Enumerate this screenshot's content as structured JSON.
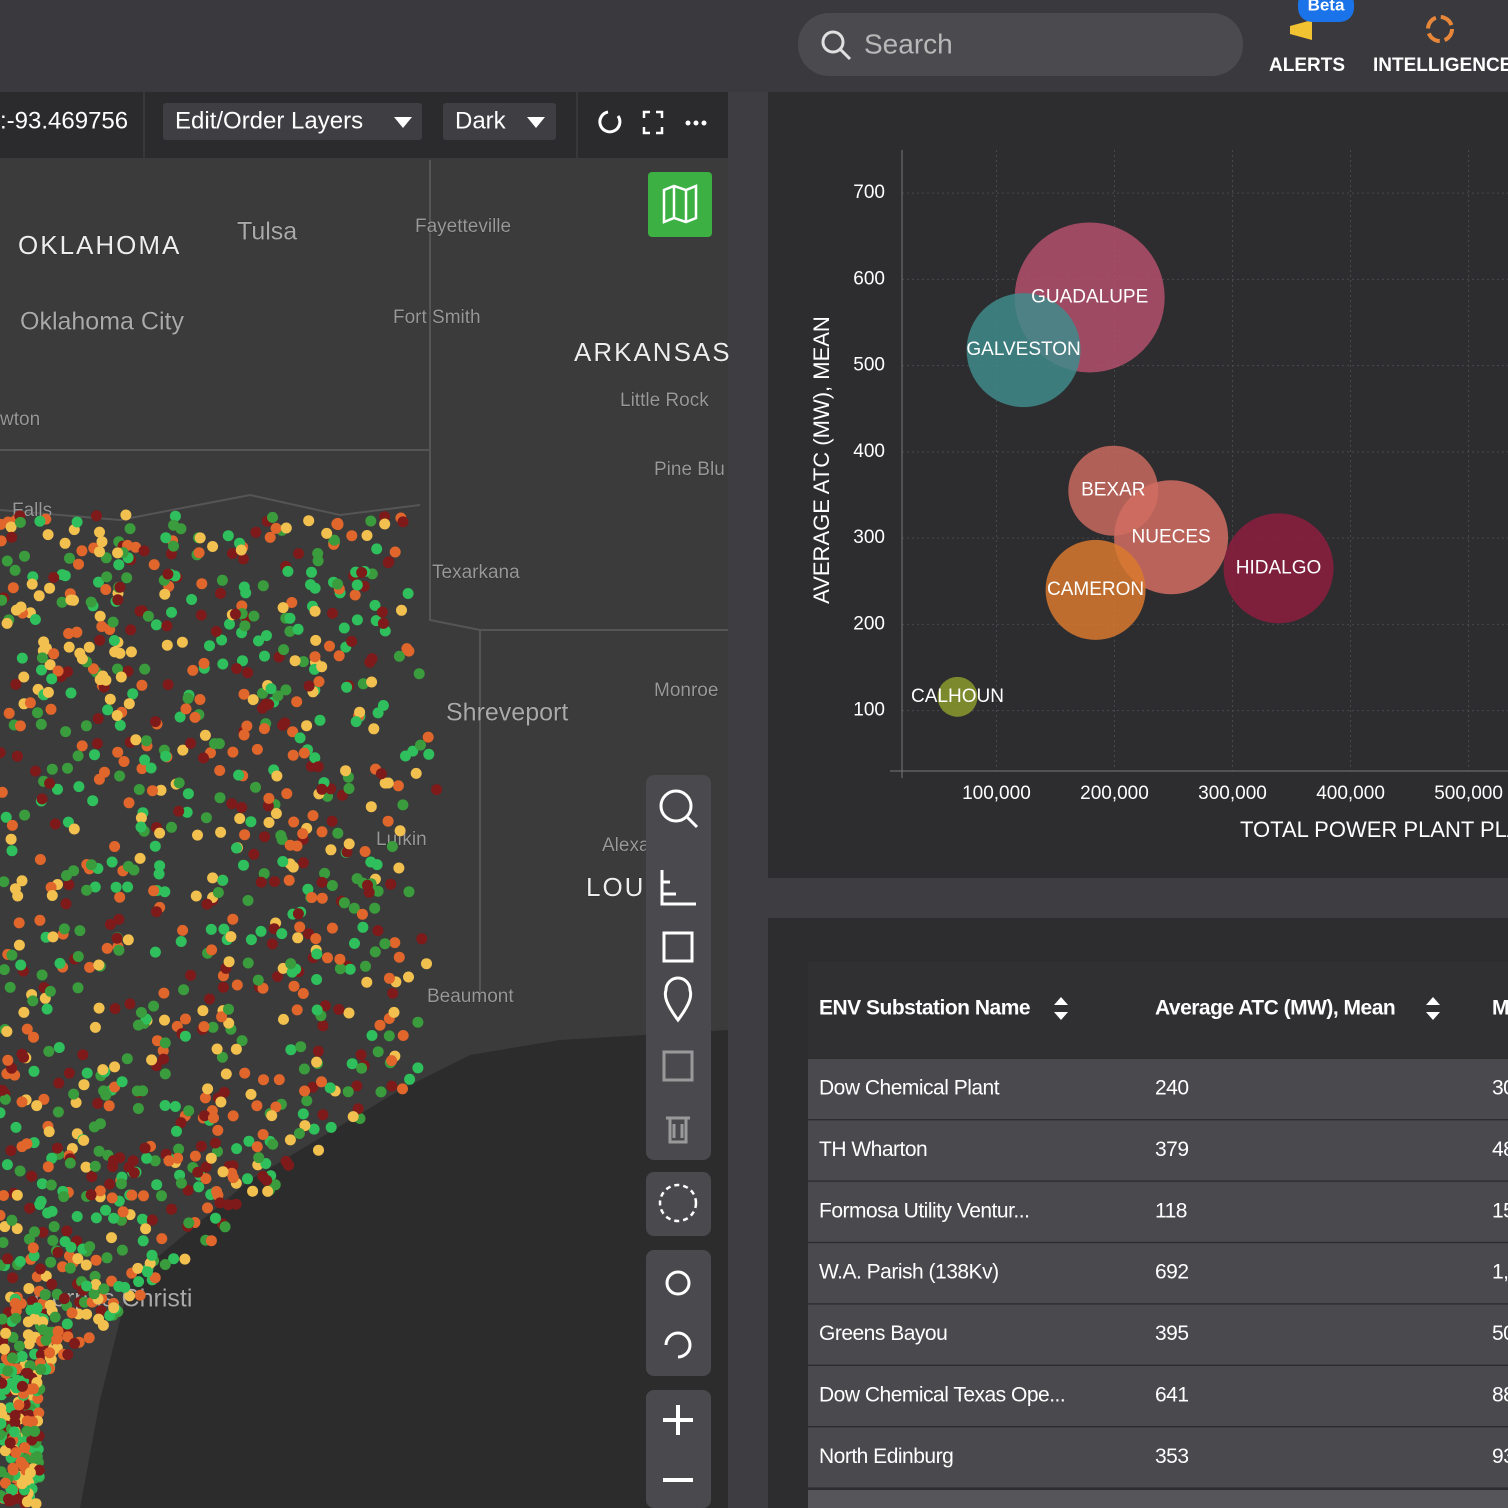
{
  "header": {
    "search_placeholder": "Search",
    "alerts": "ALERTS",
    "beta": "Beta",
    "intelligence": "INTELLIGENCE"
  },
  "map": {
    "coordinate": ":-93.469756",
    "layers_button": "Edit/Order Layers",
    "style_button": "Dark",
    "labels": [
      {
        "text": "OKLAHOMA",
        "kind": "state"
      },
      {
        "text": "Tulsa",
        "kind": "city"
      },
      {
        "text": "Fayetteville",
        "kind": "town"
      },
      {
        "text": "Oklahoma City",
        "kind": "city"
      },
      {
        "text": "Fort Smith",
        "kind": "town"
      },
      {
        "text": "ARKANSAS",
        "kind": "state"
      },
      {
        "text": "Little Rock",
        "kind": "town"
      },
      {
        "text": "Pine Blu",
        "kind": "town"
      },
      {
        "text": "Texarkana",
        "kind": "town"
      },
      {
        "text": "Shreveport",
        "kind": "city"
      },
      {
        "text": "Monroe",
        "kind": "town"
      },
      {
        "text": "Alexandria",
        "kind": "town"
      },
      {
        "text": "LOU",
        "kind": "state"
      },
      {
        "text": "Lufkin",
        "kind": "town"
      },
      {
        "text": "Beaumont",
        "kind": "town"
      },
      {
        "text": "Corpus Christi",
        "kind": "city"
      },
      {
        "text": "wton",
        "kind": "town"
      },
      {
        "text": "Falls",
        "kind": "town"
      }
    ]
  },
  "chart_data": {
    "type": "scatter",
    "x_label": "TOTAL POWER PLANT PLA",
    "y_label": "AVERAGE ATC (MW), MEAN",
    "categories": [
      "GUADALUPE",
      "GALVESTON",
      "BEXAR",
      "NUECES",
      "CAMERON",
      "HIDALGO",
      "CALHOUN"
    ],
    "x": [
      179000,
      123000,
      199000,
      248000,
      184000,
      339000,
      67000
    ],
    "values": [
      579,
      518,
      355,
      301,
      240,
      265,
      116
    ],
    "sizes": [
      75,
      57,
      45,
      57,
      50,
      55,
      20
    ],
    "colors": [
      "#b4506c",
      "#3f8b8b",
      "#c96a5e",
      "#d26d62",
      "#d9792f",
      "#8d1d3e",
      "#8b9a2c"
    ],
    "xlim": [
      20000,
      530000
    ],
    "ylim": [
      30,
      750
    ],
    "xticks": [
      {
        "value": 100000,
        "label": "100,000"
      },
      {
        "value": 200000,
        "label": "200,000"
      },
      {
        "value": 300000,
        "label": "300,000"
      },
      {
        "value": 400000,
        "label": "400,000"
      },
      {
        "value": 500000,
        "label": "500,000"
      }
    ],
    "yticks": [
      100,
      200,
      300,
      400,
      500,
      600,
      700
    ],
    "grid": true
  },
  "table": {
    "headers": [
      "ENV Substation Name",
      "Average ATC (MW), Mean",
      "M"
    ],
    "rows": [
      [
        "Dow Chemical Plant",
        "240",
        "30"
      ],
      [
        "TH Wharton",
        "379",
        "48"
      ],
      [
        "Formosa Utility Ventur...",
        "118",
        "15"
      ],
      [
        "W.A. Parish (138Kv)",
        "692",
        "1,"
      ],
      [
        "Greens Bayou",
        "395",
        "50"
      ],
      [
        "Dow Chemical Texas Ope...",
        "641",
        "88"
      ],
      [
        "North Edinburg",
        "353",
        "93"
      ]
    ]
  }
}
